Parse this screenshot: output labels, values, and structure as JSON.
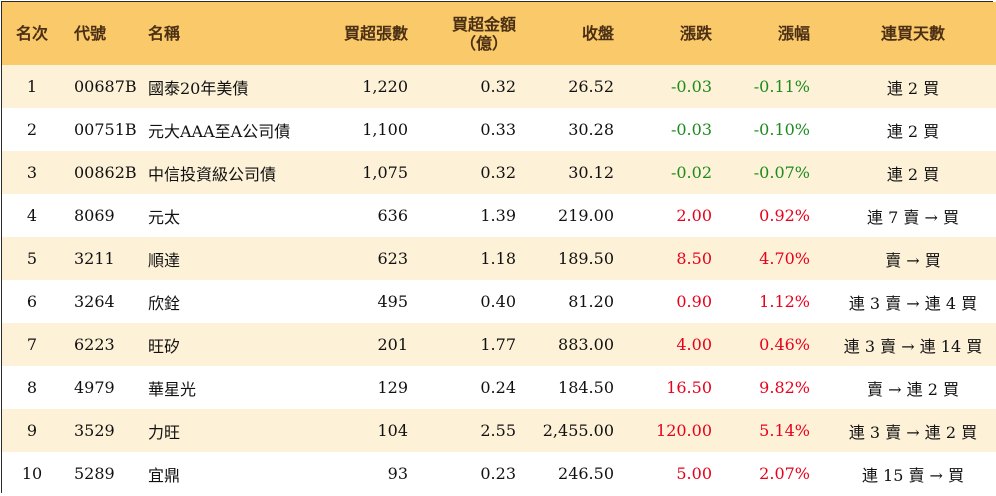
{
  "headers": {
    "rank": "名次",
    "code": "代號",
    "name": "名稱",
    "lots": "買超張數",
    "amount_line1": "買超金額",
    "amount_line2": "（億）",
    "close": "收盤",
    "change": "漲跌",
    "pct": "漲幅",
    "streak": "連買天數"
  },
  "colors": {
    "header_bg": "#f9c96a",
    "odd_row_bg": "#fdf1d8",
    "down": "#1d8c1d",
    "up": "#e8001c"
  },
  "rows": [
    {
      "rank": "1",
      "code": "00687B",
      "name": "國泰20年美債",
      "lots": "1,220",
      "amount": "0.32",
      "close": "26.52",
      "change": "-0.03",
      "pct": "-0.11%",
      "dir": "down",
      "streak": "連 2 買"
    },
    {
      "rank": "2",
      "code": "00751B",
      "name": "元大AAA至A公司債",
      "lots": "1,100",
      "amount": "0.33",
      "close": "30.28",
      "change": "-0.03",
      "pct": "-0.10%",
      "dir": "down",
      "streak": "連 2 買"
    },
    {
      "rank": "3",
      "code": "00862B",
      "name": "中信投資級公司債",
      "lots": "1,075",
      "amount": "0.32",
      "close": "30.12",
      "change": "-0.02",
      "pct": "-0.07%",
      "dir": "down",
      "streak": "連 2 買"
    },
    {
      "rank": "4",
      "code": "8069",
      "name": "元太",
      "lots": "636",
      "amount": "1.39",
      "close": "219.00",
      "change": "2.00",
      "pct": "0.92%",
      "dir": "up",
      "streak": "連 7 賣 → 買"
    },
    {
      "rank": "5",
      "code": "3211",
      "name": "順達",
      "lots": "623",
      "amount": "1.18",
      "close": "189.50",
      "change": "8.50",
      "pct": "4.70%",
      "dir": "up",
      "streak": "賣 → 買"
    },
    {
      "rank": "6",
      "code": "3264",
      "name": "欣銓",
      "lots": "495",
      "amount": "0.40",
      "close": "81.20",
      "change": "0.90",
      "pct": "1.12%",
      "dir": "up",
      "streak": "連 3 賣 → 連 4 買"
    },
    {
      "rank": "7",
      "code": "6223",
      "name": "旺矽",
      "lots": "201",
      "amount": "1.77",
      "close": "883.00",
      "change": "4.00",
      "pct": "0.46%",
      "dir": "up",
      "streak": "連 3 賣 → 連 14 買"
    },
    {
      "rank": "8",
      "code": "4979",
      "name": "華星光",
      "lots": "129",
      "amount": "0.24",
      "close": "184.50",
      "change": "16.50",
      "pct": "9.82%",
      "dir": "up",
      "streak": "賣 → 連 2 買"
    },
    {
      "rank": "9",
      "code": "3529",
      "name": "力旺",
      "lots": "104",
      "amount": "2.55",
      "close": "2,455.00",
      "change": "120.00",
      "pct": "5.14%",
      "dir": "up",
      "streak": "連 3 賣 → 連 2 買"
    },
    {
      "rank": "10",
      "code": "5289",
      "name": "宜鼎",
      "lots": "93",
      "amount": "0.23",
      "close": "246.50",
      "change": "5.00",
      "pct": "2.07%",
      "dir": "up",
      "streak": "連 15 賣 → 買"
    }
  ]
}
